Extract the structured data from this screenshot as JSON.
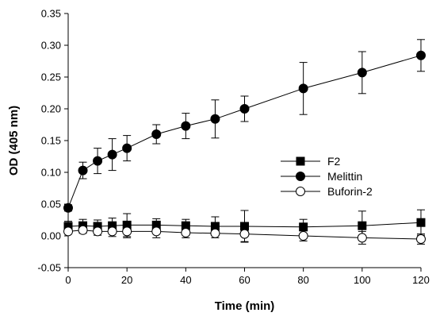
{
  "chart_data": {
    "type": "line",
    "title": "",
    "xlabel": "Time (min)",
    "ylabel": "OD (405 nm)",
    "xlim": [
      0,
      120
    ],
    "ylim": [
      -0.05,
      0.35
    ],
    "x_ticks": [
      0,
      20,
      40,
      60,
      80,
      100,
      120
    ],
    "y_ticks": [
      -0.05,
      0.0,
      0.05,
      0.1,
      0.15,
      0.2,
      0.25,
      0.3,
      0.35
    ],
    "x_tick_labels": [
      "0",
      "20",
      "40",
      "60",
      "80",
      "100",
      "120"
    ],
    "y_tick_labels": [
      "-0.05",
      "0.00",
      "0.05",
      "0.10",
      "0.15",
      "0.20",
      "0.25",
      "0.30",
      "0.35"
    ],
    "grid": false,
    "legend_position": "middle-right",
    "series": [
      {
        "name": "F2",
        "marker": "square-filled",
        "color": "#000000",
        "x": [
          0,
          5,
          10,
          15,
          20,
          30,
          40,
          50,
          60,
          80,
          100,
          120
        ],
        "y": [
          0.015,
          0.016,
          0.015,
          0.016,
          0.017,
          0.017,
          0.016,
          0.015,
          0.015,
          0.014,
          0.016,
          0.021
        ],
        "error": [
          0.008,
          0.01,
          0.01,
          0.012,
          0.018,
          0.01,
          0.01,
          0.015,
          0.025,
          0.012,
          0.023,
          0.02
        ]
      },
      {
        "name": "Melittin",
        "marker": "circle-filled",
        "color": "#000000",
        "x": [
          0,
          5,
          10,
          15,
          20,
          30,
          40,
          50,
          60,
          80,
          100,
          120
        ],
        "y": [
          0.044,
          0.103,
          0.118,
          0.128,
          0.138,
          0.16,
          0.173,
          0.184,
          0.2,
          0.232,
          0.257,
          0.284
        ],
        "error": [
          0.005,
          0.013,
          0.02,
          0.025,
          0.02,
          0.015,
          0.02,
          0.03,
          0.02,
          0.041,
          0.033,
          0.025
        ]
      },
      {
        "name": "Buforin-2",
        "marker": "circle-open",
        "color": "#000000",
        "x": [
          0,
          5,
          10,
          15,
          20,
          30,
          40,
          50,
          60,
          80,
          100,
          120
        ],
        "y": [
          0.007,
          0.009,
          0.007,
          0.007,
          0.007,
          0.007,
          0.005,
          0.004,
          0.003,
          0.0,
          -0.003,
          -0.005
        ],
        "error": [
          0.004,
          0.005,
          0.006,
          0.008,
          0.01,
          0.01,
          0.008,
          0.007,
          0.012,
          0.008,
          0.01,
          0.008
        ]
      }
    ]
  }
}
